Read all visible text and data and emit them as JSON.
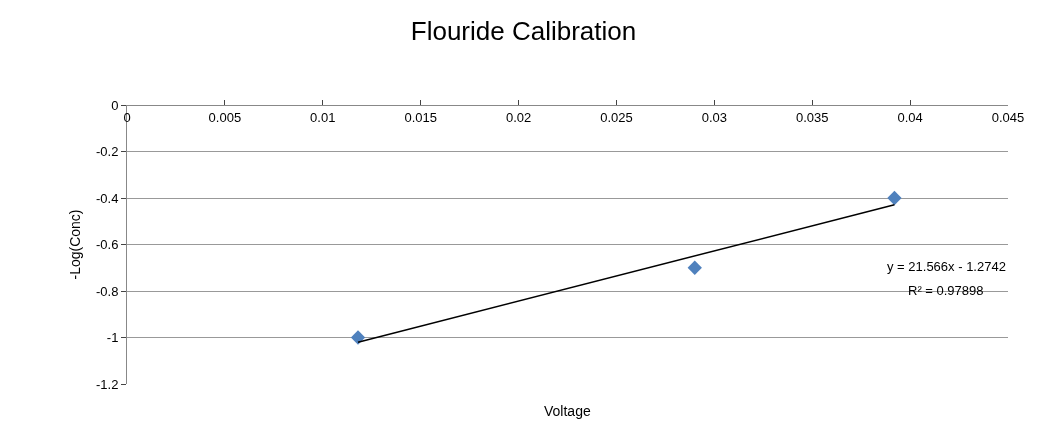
{
  "chart_data": {
    "type": "scatter",
    "title": "Flouride Calibration",
    "xlabel": "Voltage",
    "ylabel": "-Log(Conc)",
    "x": [
      0.0118,
      0.029,
      0.0392
    ],
    "series": [
      {
        "name": null,
        "color": "#4f81bd",
        "values": [
          -1,
          -0.7,
          -0.4
        ]
      },
      {
        "type": "line",
        "color": "#000000",
        "x": [
          0.0118,
          0.0392
        ],
        "values": [
          -1.02,
          -0.429
        ],
        "marker": "none"
      }
    ],
    "marker": "diamond",
    "line_style": "solid",
    "grid": "y",
    "xlim": [
      0,
      0.045
    ],
    "xticks": [
      0,
      0.005,
      0.01,
      0.015,
      0.02,
      0.025,
      0.03,
      0.035,
      0.04,
      0.045
    ],
    "ylim": [
      -1.2,
      0
    ],
    "yticks": [
      -1.2,
      -1,
      -0.8,
      -0.6,
      -0.4,
      -0.2,
      0
    ],
    "annotations": [
      "y = 21.566x - 1.2742",
      "R² = 0.97898"
    ]
  }
}
